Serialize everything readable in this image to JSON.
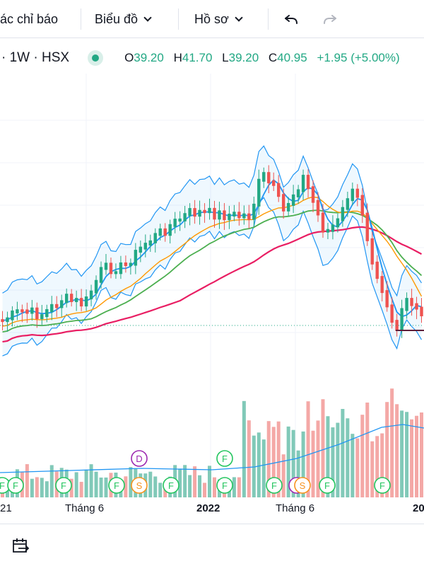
{
  "toolbar": {
    "indicators_label": "ác chỉ báo",
    "chart_label": "Biểu đồ",
    "profile_label": "Hồ sơ"
  },
  "legend": {
    "symbol_partial": "· 1W · HSX",
    "open_key": "O",
    "open": "39.20",
    "high_key": "H",
    "high": "41.70",
    "low_key": "L",
    "low": "39.20",
    "close_key": "C",
    "close": "40.95",
    "change": "+1.95 (+5.00%)"
  },
  "colors": {
    "up": "#22a884",
    "down": "#ef5350",
    "bb": "#2196f3",
    "ma_orange": "#ff9800",
    "ma_green": "#4caf50",
    "ma_pink": "#e91e63",
    "vol_up": "#81c9b8",
    "vol_down": "#f4a8a6",
    "event_f": "#22c55e",
    "event_s": "#f7931e",
    "event_d": "#9c27b0"
  },
  "chart_data": {
    "type": "candlestick",
    "x_tick_labels": [
      "21",
      "Tháng 6",
      "2022",
      "Tháng 6",
      "20"
    ],
    "last_close": 40.95,
    "events": [
      {
        "label": "F",
        "week": 2
      },
      {
        "label": "F",
        "week": 4
      },
      {
        "label": "F",
        "week": 14
      },
      {
        "label": "F",
        "week": 25
      },
      {
        "label": "S",
        "week": 30
      },
      {
        "label": "D",
        "week": 30
      },
      {
        "label": "F",
        "week": 37
      },
      {
        "label": "F",
        "week": 49
      },
      {
        "label": "F",
        "week": 49
      },
      {
        "label": "F",
        "week": 60
      },
      {
        "label": "C",
        "week": 65
      },
      {
        "label": "S",
        "week": 66
      },
      {
        "label": "F",
        "week": 72
      },
      {
        "label": "F",
        "week": 85
      }
    ]
  }
}
